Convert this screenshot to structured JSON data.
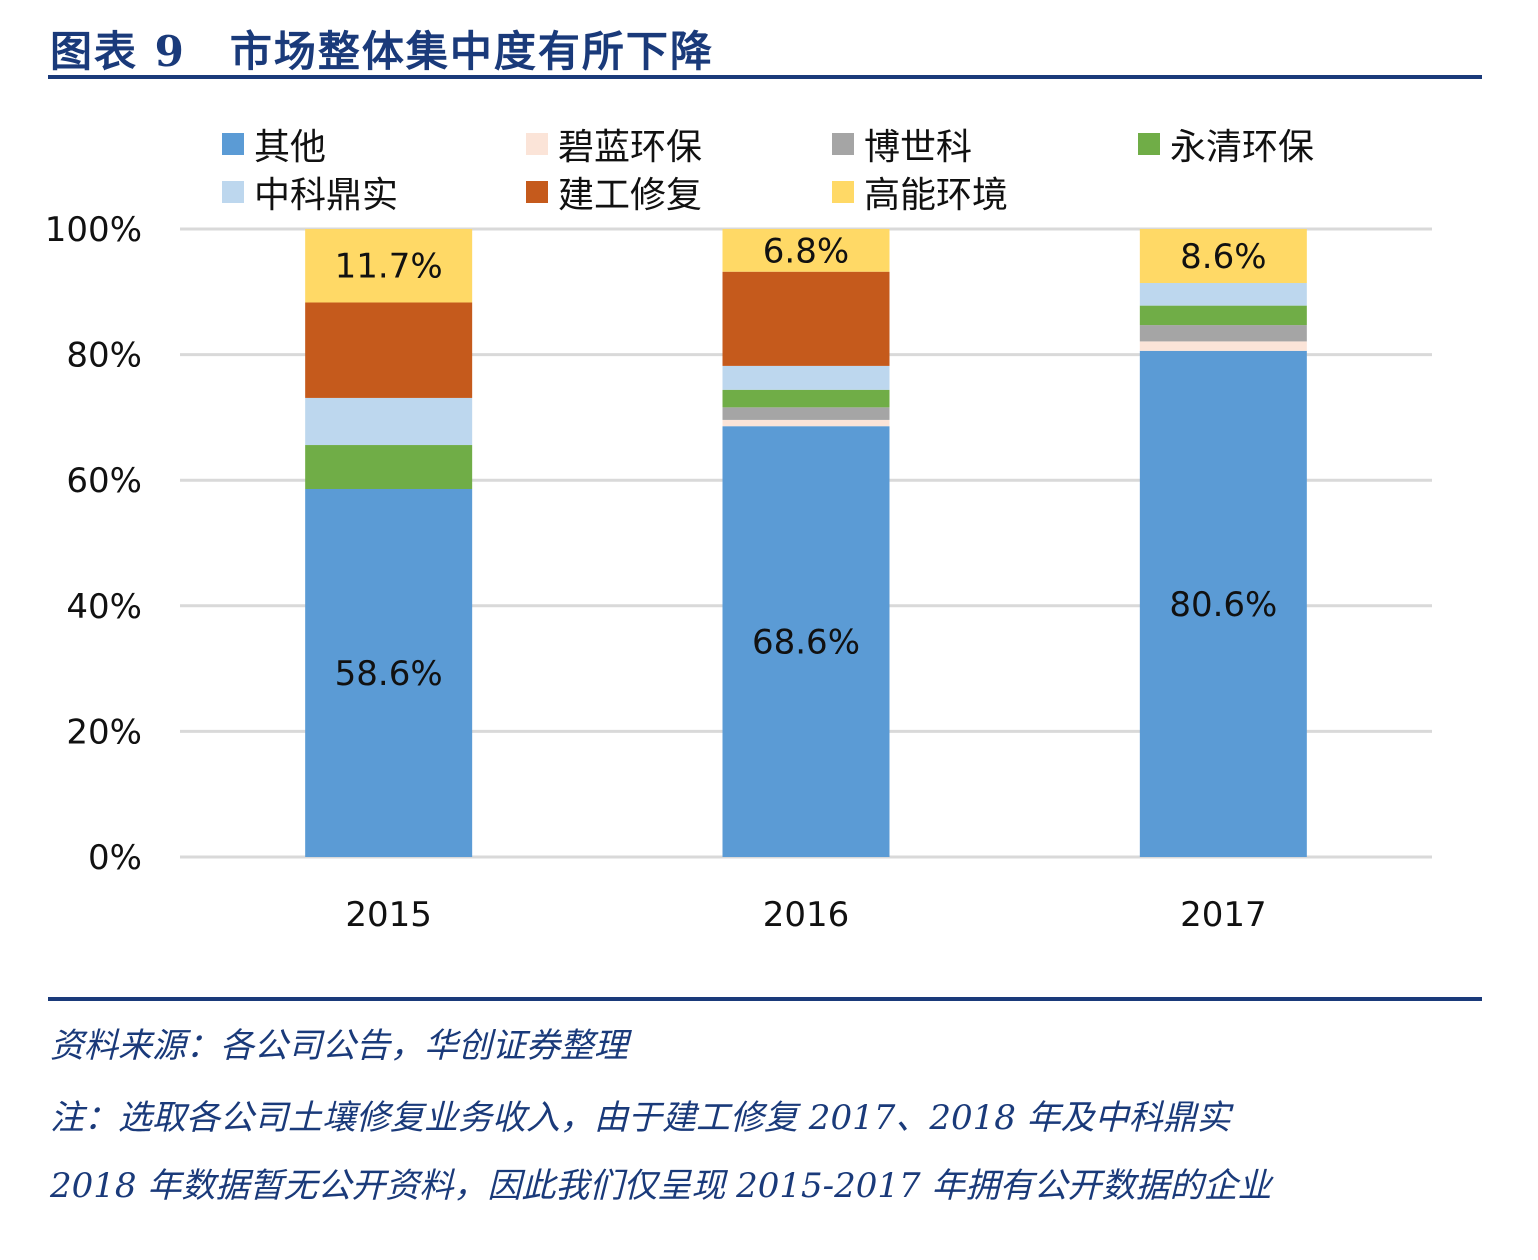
{
  "page": {
    "title": "图表 9　市场整体集中度有所下降",
    "source": "资料来源：各公司公告，华创证券整理",
    "note_line1": "注：选取各公司土壤修复业务收入，由于建工修复 2017、2018 年及中科鼎实",
    "note_line2": "2018 年数据暂无公开资料，因此我们仅呈现 2015-2017 年拥有公开数据的企业"
  },
  "chart_data": {
    "type": "bar",
    "stacked": true,
    "categories": [
      "2015",
      "2016",
      "2017"
    ],
    "series": [
      {
        "name": "其他",
        "color": "#5b9bd5",
        "values": [
          58.6,
          68.6,
          80.6
        ]
      },
      {
        "name": "碧蓝环保",
        "color": "#fbe4d8",
        "values": [
          0.0,
          1.0,
          1.5
        ]
      },
      {
        "name": "博世科",
        "color": "#a5a5a5",
        "values": [
          0.0,
          2.0,
          2.6
        ]
      },
      {
        "name": "永清环保",
        "color": "#70ad47",
        "values": [
          7.0,
          2.8,
          3.1
        ]
      },
      {
        "name": "中科鼎实",
        "color": "#bdd7ee",
        "values": [
          7.5,
          3.8,
          3.6
        ]
      },
      {
        "name": "建工修复",
        "color": "#c55a1c",
        "values": [
          15.2,
          15.0,
          0.0
        ]
      },
      {
        "name": "高能环境",
        "color": "#ffd966",
        "values": [
          11.7,
          6.8,
          8.6
        ]
      }
    ],
    "data_labels": [
      {
        "category": "2015",
        "series": "其他",
        "text": "58.6%"
      },
      {
        "category": "2016",
        "series": "其他",
        "text": "68.6%"
      },
      {
        "category": "2017",
        "series": "其他",
        "text": "80.6%"
      },
      {
        "category": "2015",
        "series": "高能环境",
        "text": "11.7%"
      },
      {
        "category": "2016",
        "series": "高能环境",
        "text": "6.8%"
      },
      {
        "category": "2017",
        "series": "高能环境",
        "text": "8.6%"
      }
    ],
    "yticks": [
      "0%",
      "20%",
      "40%",
      "60%",
      "80%",
      "100%"
    ],
    "ylim": [
      0,
      100
    ],
    "grid": true,
    "legend_position": "top"
  }
}
